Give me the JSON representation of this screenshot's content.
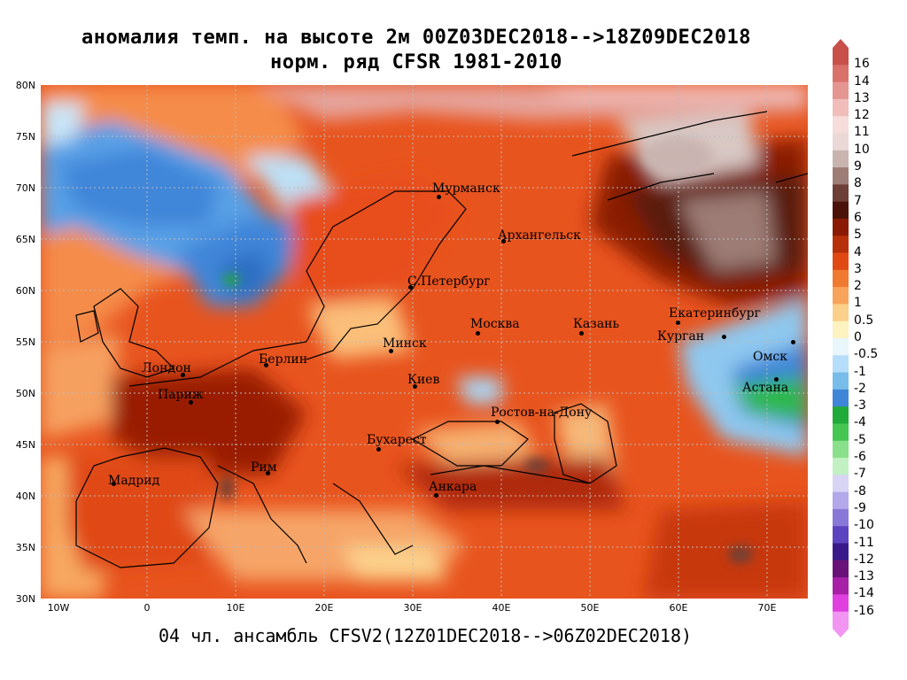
{
  "title_line1": "аномалия темп. на высоте 2м 00Z03DEC2018-->18Z09DEC2018",
  "title_line2": "норм. ряд CFSR 1981-2010",
  "subtitle": "04 чл. ансамбль CFSV2(12Z01DEC2018-->06Z02DEC2018)",
  "lat_labels": [
    "80N",
    "75N",
    "70N",
    "65N",
    "60N",
    "55N",
    "50N",
    "45N",
    "40N",
    "35N",
    "30N"
  ],
  "lon_labels": [
    "10W",
    "0",
    "10E",
    "20E",
    "30E",
    "40E",
    "50E",
    "60E",
    "70E"
  ],
  "cities": [
    {
      "name": "Мурманск"
    },
    {
      "name": "Архангельск"
    },
    {
      "name": "С.Петербург"
    },
    {
      "name": "Москва"
    },
    {
      "name": "Казань"
    },
    {
      "name": "Екатеринбург"
    },
    {
      "name": "Курган"
    },
    {
      "name": "Омск"
    },
    {
      "name": "Астана"
    },
    {
      "name": "Минск"
    },
    {
      "name": "Киев"
    },
    {
      "name": "Берлин"
    },
    {
      "name": "Лондон"
    },
    {
      "name": "Париж"
    },
    {
      "name": "Ростов-на-Дону"
    },
    {
      "name": "Бухарест"
    },
    {
      "name": "Рим"
    },
    {
      "name": "Мадрид"
    },
    {
      "name": "Анкара"
    }
  ],
  "legend": {
    "labels": [
      "16",
      "14",
      "13",
      "12",
      "11",
      "10",
      "9",
      "8",
      "7",
      "6",
      "5",
      "4",
      "3",
      "2",
      "1",
      "0.5",
      "0",
      "-0.5",
      "-1",
      "-2",
      "-3",
      "-4",
      "-5",
      "-6",
      "-7",
      "-8",
      "-9",
      "-10",
      "-11",
      "-12",
      "-13",
      "-14",
      "-16"
    ],
    "colors": [
      "#c8504b",
      "#d9706a",
      "#e59591",
      "#f0bdbb",
      "#f6dcdb",
      "#e9d8d6",
      "#c9b4b0",
      "#9e7d77",
      "#6e3f36",
      "#4a1208",
      "#8a1a04",
      "#b8300a",
      "#e04a12",
      "#f07a30",
      "#f7a45a",
      "#fbd08a",
      "#fdf3c0",
      "#e9f6fb",
      "#b6defa",
      "#78bde9",
      "#3f86d9",
      "#1faa3a",
      "#45c552",
      "#8ae08a",
      "#c2f0c2",
      "#d8d4f4",
      "#b3a8ea",
      "#8a78d8",
      "#5c43c0",
      "#3a1a8a",
      "#6a127a",
      "#a820a8",
      "#e040e0",
      "#f294f2"
    ]
  },
  "colors": {
    "ocean_warm": "#f58c4a",
    "land_base": "#e64a1a",
    "deep_anomaly": "#9a1e06",
    "brown_anomaly": "#5a1a10",
    "cold_blue": "#4a90e0",
    "pale_blue": "#cfe8f8",
    "green": "#2fb84a",
    "pale_yellow": "#fde0a0"
  }
}
